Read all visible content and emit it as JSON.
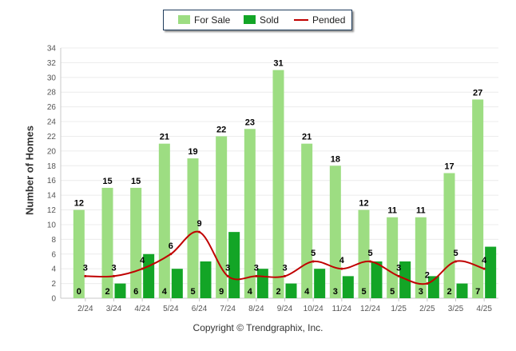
{
  "chart_data": {
    "type": "bar",
    "categories": [
      "2/24",
      "3/24",
      "4/24",
      "5/24",
      "6/24",
      "7/24",
      "8/24",
      "9/24",
      "10/24",
      "11/24",
      "12/24",
      "1/25",
      "2/25",
      "3/25",
      "4/25"
    ],
    "series": [
      {
        "name": "For Sale",
        "type": "bar",
        "color": "#9ddd82",
        "values": [
          12,
          15,
          15,
          21,
          19,
          22,
          23,
          31,
          21,
          18,
          12,
          11,
          11,
          17,
          27
        ]
      },
      {
        "name": "Sold",
        "type": "bar",
        "color": "#13a526",
        "values": [
          0,
          2,
          6,
          4,
          5,
          9,
          4,
          2,
          4,
          3,
          5,
          5,
          3,
          2,
          7
        ]
      },
      {
        "name": "Pended",
        "type": "line",
        "color": "#c00000",
        "values": [
          3,
          3,
          4,
          6,
          9,
          3,
          3,
          3,
          5,
          4,
          5,
          3,
          2,
          5,
          4
        ]
      }
    ],
    "ylabel": "Number of Homes",
    "xlabel": "",
    "ylim": [
      0,
      34
    ],
    "yticks": [
      0,
      2,
      4,
      6,
      8,
      10,
      12,
      14,
      16,
      18,
      20,
      22,
      24,
      26,
      28,
      30,
      32,
      34
    ],
    "grid": true,
    "legend_position": "top-center"
  },
  "footer": {
    "copyright": "Copyright © Trendgraphix, Inc."
  },
  "legend": {
    "for_sale_label": "For Sale",
    "sold_label": "Sold",
    "pended_label": "Pended"
  }
}
